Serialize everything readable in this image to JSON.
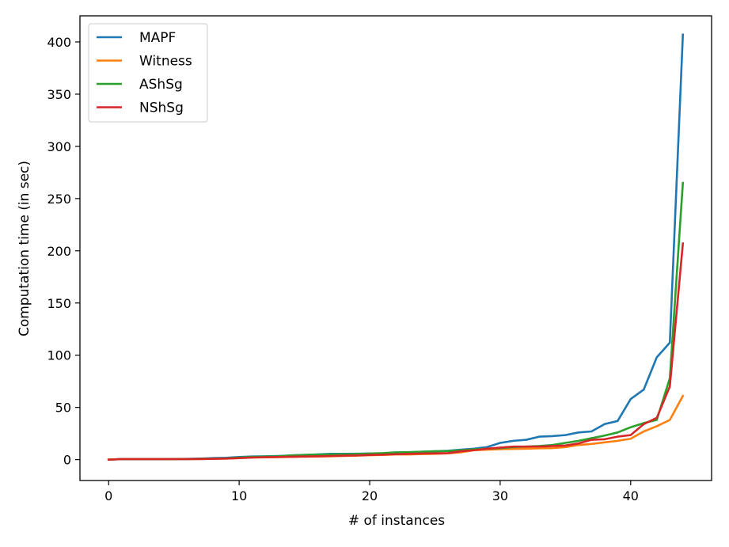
{
  "chart_data": {
    "type": "line",
    "xlabel": "# of instances",
    "ylabel": "Computation time (in sec)",
    "xlim": [
      -2.2,
      46.2
    ],
    "ylim": [
      -20,
      425
    ],
    "xticks": [
      0,
      10,
      20,
      30,
      40
    ],
    "yticks": [
      0,
      50,
      100,
      150,
      200,
      250,
      300,
      350,
      400
    ],
    "grid": false,
    "legend_position": "top-left",
    "x": [
      0,
      1,
      2,
      3,
      4,
      5,
      6,
      7,
      8,
      9,
      10,
      11,
      12,
      13,
      14,
      15,
      16,
      17,
      18,
      19,
      20,
      21,
      22,
      23,
      24,
      25,
      26,
      27,
      28,
      29,
      30,
      31,
      32,
      33,
      34,
      35,
      36,
      37,
      38,
      39,
      40,
      41,
      42,
      43,
      44
    ],
    "series": [
      {
        "name": "MAPF",
        "color": "#1f77b4",
        "values": [
          0,
          0.5,
          0.5,
          0.5,
          0.5,
          0.6,
          0.7,
          1,
          1.5,
          1.8,
          2.5,
          3,
          3.2,
          3.5,
          4,
          4.5,
          5,
          5.5,
          5.5,
          5.6,
          5.8,
          6,
          6.5,
          7,
          7.5,
          8,
          8.5,
          9.5,
          10.5,
          12,
          16,
          18,
          19,
          22,
          22.5,
          23.5,
          26,
          27,
          34,
          37,
          58,
          67,
          98,
          112,
          407
        ]
      },
      {
        "name": "Witness",
        "color": "#ff7f0e",
        "values": [
          0,
          0.5,
          0.5,
          0.5,
          0.5,
          0.5,
          0.5,
          0.5,
          0.8,
          1,
          1.5,
          2,
          2.2,
          2.4,
          2.6,
          2.8,
          3,
          3.2,
          3.5,
          3.8,
          4.2,
          4.5,
          5,
          5,
          5.3,
          5.5,
          6,
          7,
          9,
          9.5,
          10,
          10.3,
          10.5,
          10.8,
          11,
          12,
          14,
          15,
          16.5,
          18,
          20,
          27,
          32,
          38,
          61
        ]
      },
      {
        "name": "AShSg",
        "color": "#2ca02c",
        "values": [
          0,
          0.5,
          0.5,
          0.5,
          0.5,
          0.5,
          0.5,
          0.8,
          1,
          1.2,
          2,
          2.5,
          3,
          3.2,
          4,
          4.5,
          4.8,
          5,
          5.2,
          5.4,
          5.8,
          6.2,
          7,
          7.2,
          7.5,
          8,
          8.2,
          9,
          9.8,
          10.5,
          11,
          12,
          12.5,
          13,
          14,
          16,
          18,
          20.5,
          23,
          26,
          31,
          35,
          38,
          78,
          265
        ]
      },
      {
        "name": "NShSg",
        "color": "#d62728",
        "values": [
          0,
          0.5,
          0.5,
          0.5,
          0.5,
          0.5,
          0.5,
          0.6,
          0.8,
          1,
          1.5,
          2,
          2.3,
          2.5,
          2.8,
          3,
          3.2,
          3.5,
          3.8,
          4,
          4.5,
          4.8,
          5.2,
          5.5,
          5.8,
          6,
          6.2,
          8,
          9,
          10.5,
          11.5,
          12.5,
          12.5,
          12.5,
          13,
          13.5,
          15.5,
          19,
          19.5,
          22,
          23.5,
          34,
          40,
          70,
          207
        ]
      }
    ]
  }
}
